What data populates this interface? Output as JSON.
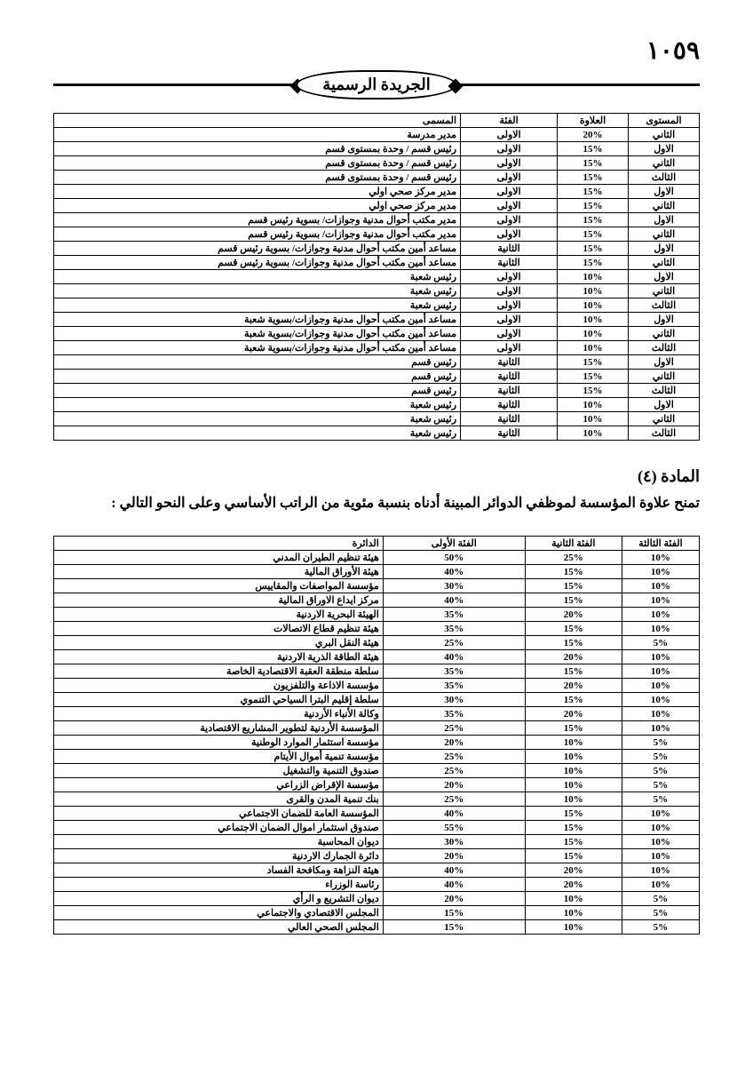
{
  "page_number": "١٠٥٩",
  "header_badge": "الجريدة الرسمية",
  "table1": {
    "headers": {
      "level": "المستوى",
      "allowance": "العلاوة",
      "category": "الفئة",
      "name": "المسمى"
    },
    "rows": [
      {
        "level": "الثاني",
        "allow": "20%",
        "cat": "الاولى",
        "name": "مدير مدرسة"
      },
      {
        "level": "الاول",
        "allow": "15%",
        "cat": "الاولى",
        "name": "رئيس قسم / وحدة بمستوى قسم"
      },
      {
        "level": "الثاني",
        "allow": "15%",
        "cat": "الاولى",
        "name": "رئيس قسم / وحدة بمستوى قسم"
      },
      {
        "level": "الثالث",
        "allow": "15%",
        "cat": "الاولى",
        "name": "رئيس قسم / وحدة بمستوى قسم"
      },
      {
        "level": "الاول",
        "allow": "15%",
        "cat": "الاولى",
        "name": "مدير مركز صحي اولي"
      },
      {
        "level": "الثاني",
        "allow": "15%",
        "cat": "الاولى",
        "name": "مدير مركز صحي اولي"
      },
      {
        "level": "الاول",
        "allow": "15%",
        "cat": "الاولى",
        "name": "مدير مكتب أحوال مدنية وجوازات/ بسوية رئيس قسم"
      },
      {
        "level": "الثاني",
        "allow": "15%",
        "cat": "الاولى",
        "name": "مدير مكتب أحوال مدنية وجوازات/ بسوية رئيس قسم"
      },
      {
        "level": "الاول",
        "allow": "15%",
        "cat": "الثانية",
        "name": "مساعد أمين مكتب أحوال مدنية وجوازات/ بسوية رئيس قسم"
      },
      {
        "level": "الثاني",
        "allow": "15%",
        "cat": "الثانية",
        "name": "مساعد أمين مكتب أحوال مدنية وجوازات/ بسوية رئيس قسم"
      },
      {
        "level": "الاول",
        "allow": "10%",
        "cat": "الاولى",
        "name": "رئيس شعبة"
      },
      {
        "level": "الثاني",
        "allow": "10%",
        "cat": "الاولى",
        "name": "رئيس شعبة"
      },
      {
        "level": "الثالث",
        "allow": "10%",
        "cat": "الاولى",
        "name": "رئيس شعبة"
      },
      {
        "level": "الاول",
        "allow": "10%",
        "cat": "الاولى",
        "name": "مساعد أمين مكتب أحوال مدنية وجوازات/بسوية شعبة"
      },
      {
        "level": "الثاني",
        "allow": "10%",
        "cat": "الاولى",
        "name": "مساعد أمين مكتب أحوال مدنية وجوازات/بسوية شعبة"
      },
      {
        "level": "الثالث",
        "allow": "10%",
        "cat": "الاولى",
        "name": "مساعد أمين مكتب أحوال مدنية وجوازات/بسوية شعبة"
      },
      {
        "level": "الاول",
        "allow": "15%",
        "cat": "الثانية",
        "name": "رئيس قسم"
      },
      {
        "level": "الثاني",
        "allow": "15%",
        "cat": "الثانية",
        "name": "رئيس قسم"
      },
      {
        "level": "الثالث",
        "allow": "15%",
        "cat": "الثانية",
        "name": "رئيس قسم"
      },
      {
        "level": "الاول",
        "allow": "10%",
        "cat": "الثانية",
        "name": "رئيس شعبة"
      },
      {
        "level": "الثاني",
        "allow": "10%",
        "cat": "الثانية",
        "name": "رئيس شعبة"
      },
      {
        "level": "الثالث",
        "allow": "10%",
        "cat": "الثانية",
        "name": "رئيس شعبة"
      }
    ]
  },
  "article": {
    "title": "المادة (٤)",
    "body": "تمنح علاوة المؤسسة لموظفي الدوائر المبينة أدناه بنسبة مئوية من الراتب الأساسي وعلى النحو التالي :"
  },
  "table2": {
    "headers": {
      "c3": "الفئة الثالثة",
      "c2": "الفئة الثانية",
      "c1": "الفئة الأولى",
      "dep": "الدائرة"
    },
    "rows": [
      {
        "c3": "10%",
        "c2": "25%",
        "c1": "50%",
        "dep": "هيئة تنظيم الطيران المدني"
      },
      {
        "c3": "10%",
        "c2": "15%",
        "c1": "40%",
        "dep": "هيئة الأوراق المالية"
      },
      {
        "c3": "10%",
        "c2": "15%",
        "c1": "30%",
        "dep": "مؤسسة المواصفات والمقاييس"
      },
      {
        "c3": "10%",
        "c2": "15%",
        "c1": "40%",
        "dep": "مركز ايداع الاوراق المالية"
      },
      {
        "c3": "10%",
        "c2": "20%",
        "c1": "35%",
        "dep": "الهيئة البحرية الاردنية"
      },
      {
        "c3": "10%",
        "c2": "15%",
        "c1": "35%",
        "dep": "هيئة تنظيم قطاع الاتصالات"
      },
      {
        "c3": "5%",
        "c2": "15%",
        "c1": "25%",
        "dep": "هيئة النقل البري"
      },
      {
        "c3": "10%",
        "c2": "20%",
        "c1": "40%",
        "dep": "هيئة الطاقة الذرية الاردنية"
      },
      {
        "c3": "10%",
        "c2": "15%",
        "c1": "35%",
        "dep": "سلطة منطقة العقبة الاقتصادية الخاصة"
      },
      {
        "c3": "10%",
        "c2": "20%",
        "c1": "35%",
        "dep": "مؤسسة الاذاعة والتلفزيون"
      },
      {
        "c3": "10%",
        "c2": "15%",
        "c1": "30%",
        "dep": "سلطة إقليم البترا السياحي التنموي"
      },
      {
        "c3": "10%",
        "c2": "20%",
        "c1": "35%",
        "dep": "وكالة الأنباء الأردنية"
      },
      {
        "c3": "10%",
        "c2": "15%",
        "c1": "25%",
        "dep": "المؤسسة الأردنية لتطوير المشاريع الاقتصادية"
      },
      {
        "c3": "5%",
        "c2": "10%",
        "c1": "20%",
        "dep": "مؤسسة استثمار الموارد الوطنية"
      },
      {
        "c3": "5%",
        "c2": "10%",
        "c1": "25%",
        "dep": "مؤسسة تنمية أموال الأيتام"
      },
      {
        "c3": "5%",
        "c2": "10%",
        "c1": "25%",
        "dep": "صندوق التنمية والتشغيل"
      },
      {
        "c3": "5%",
        "c2": "10%",
        "c1": "20%",
        "dep": "مؤسسة الإقراض الزراعي"
      },
      {
        "c3": "5%",
        "c2": "10%",
        "c1": "25%",
        "dep": "بنك تنمية المدن والقرى"
      },
      {
        "c3": "10%",
        "c2": "15%",
        "c1": "40%",
        "dep": "المؤسسة العامة للضمان الاجتماعي"
      },
      {
        "c3": "10%",
        "c2": "15%",
        "c1": "55%",
        "dep": "صندوق استثمار اموال الضمان الاجتماعي"
      },
      {
        "c3": "10%",
        "c2": "15%",
        "c1": "30%",
        "dep": "ديوان المحاسبة"
      },
      {
        "c3": "10%",
        "c2": "15%",
        "c1": "20%",
        "dep": "دائرة الجمارك الاردنية"
      },
      {
        "c3": "10%",
        "c2": "20%",
        "c1": "40%",
        "dep": "هيئة النزاهة ومكافحة الفساد"
      },
      {
        "c3": "10%",
        "c2": "20%",
        "c1": "40%",
        "dep": "رئاسة الوزراء"
      },
      {
        "c3": "5%",
        "c2": "10%",
        "c1": "20%",
        "dep": "ديوان التشريع و الرأي"
      },
      {
        "c3": "5%",
        "c2": "10%",
        "c1": "15%",
        "dep": "المجلس الاقتصادي والاجتماعي"
      },
      {
        "c3": "5%",
        "c2": "10%",
        "c1": "15%",
        "dep": "المجلس الصحي العالي"
      }
    ]
  }
}
